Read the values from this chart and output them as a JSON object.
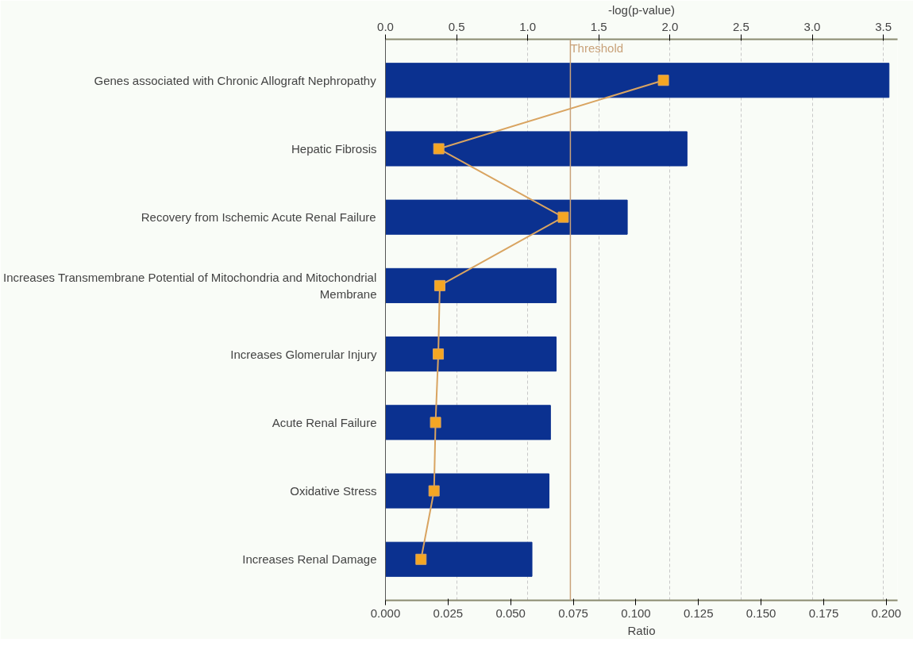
{
  "chart_data": {
    "type": "bar",
    "orientation": "horizontal",
    "xlabel": "Ratio",
    "x2label": "-log(p-value)",
    "categories": [
      "Genes associated with Chronic Allograft Nephropathy",
      "Hepatic Fibrosis",
      "Recovery from Ischemic Acute Renal Failure",
      "Increases Transmembrane Potential of Mitochondria and Mitochondrial\nMembrane",
      "Increases Glomerular Injury",
      "Acute Renal Failure",
      "Oxidative Stress",
      "Increases Renal Damage"
    ],
    "series": [
      {
        "axis": "x2",
        "color": "#0b3190",
        "values": [
          3.54,
          2.12,
          1.7,
          1.2,
          1.2,
          1.16,
          1.15,
          1.03
        ]
      },
      {
        "type": "line",
        "color": "#d9a461",
        "marker": "square",
        "line_style": "solid",
        "values": [
          0.111,
          0.0213,
          0.071,
          0.0217,
          0.0211,
          0.02,
          0.0194,
          0.0142
        ]
      }
    ],
    "xlim": [
      0,
      0.2045
    ],
    "xticks": [
      {
        "value": 0,
        "label": "0.000"
      },
      {
        "value": 0.025,
        "label": "0.025"
      },
      {
        "value": 0.05,
        "label": "0.050"
      },
      {
        "value": 0.075,
        "label": "0.075"
      },
      {
        "value": 0.1,
        "label": "0.100"
      },
      {
        "value": 0.125,
        "label": "0.125"
      },
      {
        "value": 0.15,
        "label": "0.150"
      },
      {
        "value": 0.175,
        "label": "0.175"
      },
      {
        "value": 0.2,
        "label": "0.200"
      }
    ],
    "x2lim": [
      0,
      3.6
    ],
    "x2ticks": [
      {
        "value": 0,
        "label": "0.0"
      },
      {
        "value": 0.5,
        "label": "0.5"
      },
      {
        "value": 1,
        "label": "1.0"
      },
      {
        "value": 1.5,
        "label": "1.5"
      },
      {
        "value": 2,
        "label": "2.0"
      },
      {
        "value": 2.5,
        "label": "2.5"
      },
      {
        "value": 3,
        "label": "3.0"
      },
      {
        "value": 3.5,
        "label": "3.5"
      }
    ],
    "ref_lines": [
      {
        "axis": "x2",
        "value": 1.3,
        "label": "Threshold",
        "color": "#c9a27a"
      }
    ],
    "grid": "x"
  }
}
